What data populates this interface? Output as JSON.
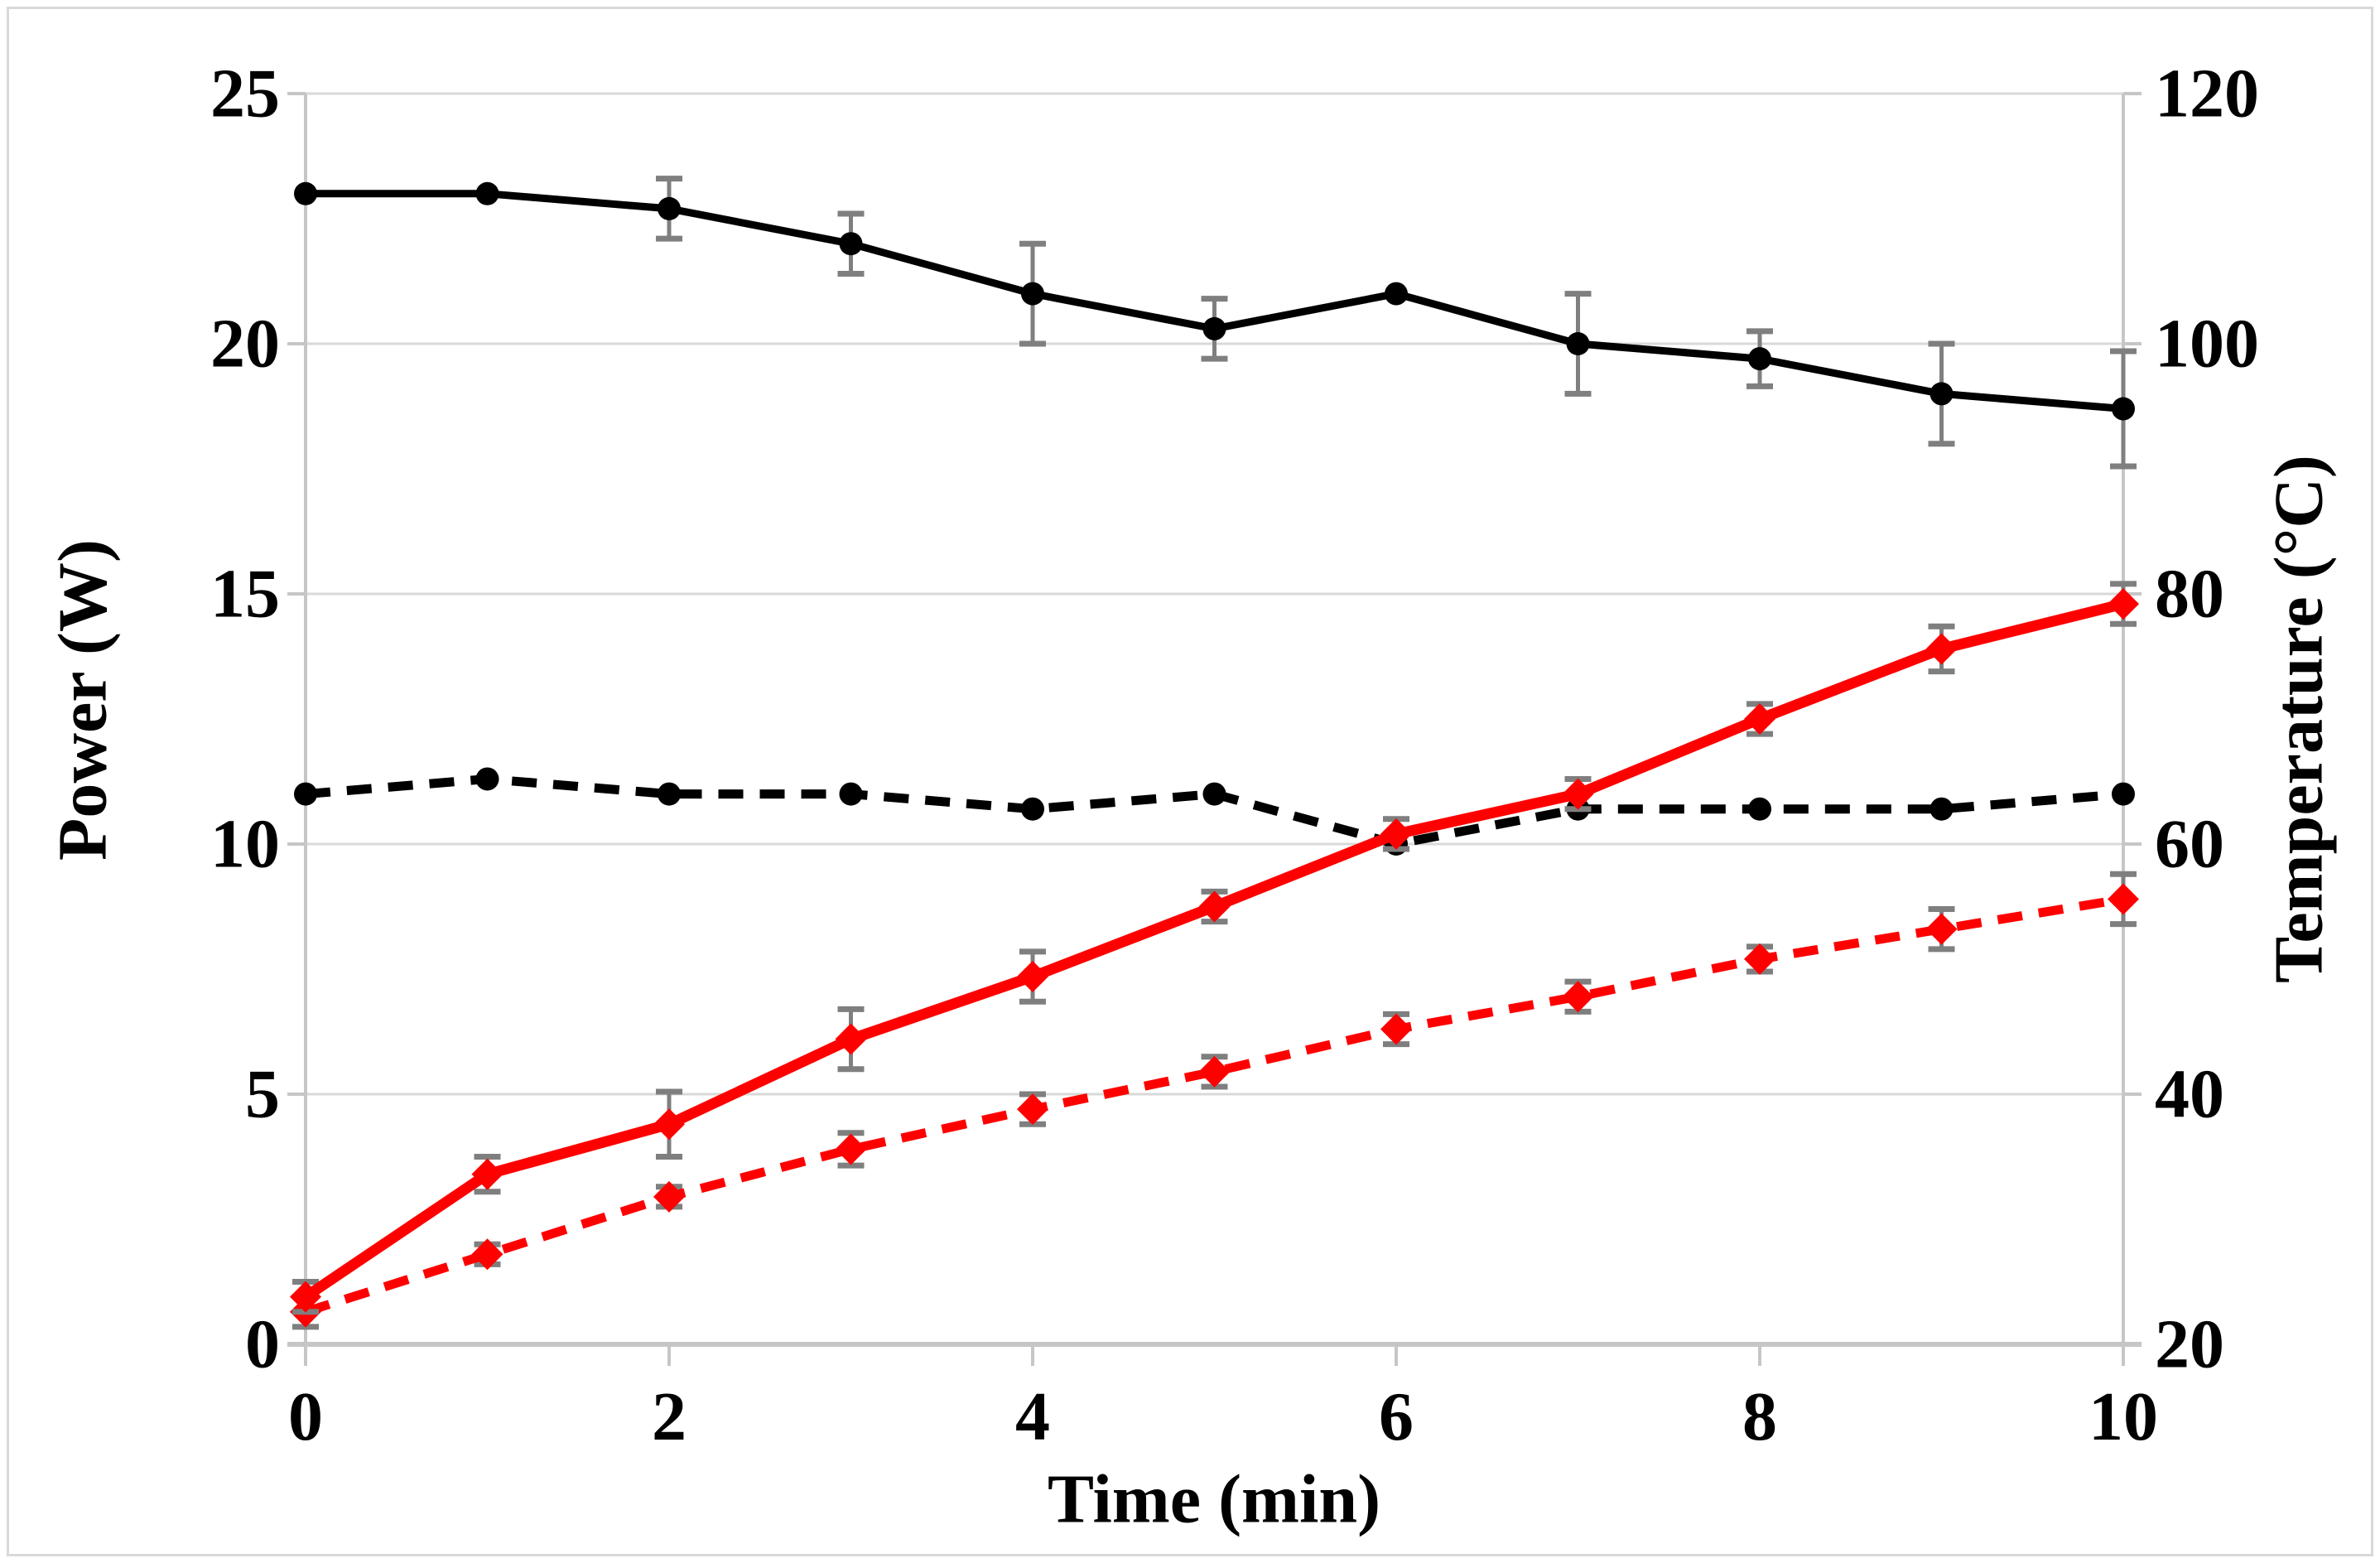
{
  "figure": {
    "background": "#ffffff",
    "border_color": "#d9d9d9",
    "gridline_color": "#d9d9d9",
    "axis_line_color": "#c6c6c6",
    "error_bar_color": "#7f7f7f",
    "text_color": "#000000"
  },
  "chart_data": {
    "type": "line",
    "title": "",
    "xlabel": "Time (min)",
    "x": [
      0,
      1,
      2,
      3,
      4,
      5,
      6,
      7,
      8,
      9,
      10
    ],
    "x_range": [
      0,
      10
    ],
    "x_ticks": [
      0,
      2,
      4,
      6,
      8,
      10
    ],
    "x_tick_labels": [
      "0",
      "2",
      "4",
      "6",
      "8",
      "10"
    ],
    "y_left": {
      "label": "Power (W)",
      "min": 0,
      "max": 25,
      "ticks": [
        0,
        5,
        10,
        15,
        20,
        25
      ],
      "tick_labels": [
        "0",
        "5",
        "10",
        "15",
        "20",
        "25"
      ]
    },
    "y_right": {
      "label": "Temperature (°C)",
      "min": 20,
      "max": 120,
      "ticks": [
        20,
        40,
        60,
        80,
        100,
        120
      ],
      "tick_labels": [
        "20",
        "40",
        "60",
        "80",
        "100",
        "120"
      ]
    },
    "grid": true,
    "legend": "none",
    "series": [
      {
        "name": "power_solid",
        "axis": "left",
        "color": "#000000",
        "style": "solid",
        "marker": "circle",
        "line_width": 9,
        "values": [
          23.0,
          23.0,
          22.7,
          22.0,
          21.0,
          20.3,
          21.0,
          20.0,
          19.7,
          19.0,
          18.7
        ],
        "errors": [
          0,
          0,
          0.6,
          0.6,
          1.0,
          0.6,
          0,
          1.0,
          0.55,
          1.0,
          1.15
        ]
      },
      {
        "name": "power_dashed",
        "axis": "left",
        "color": "#000000",
        "style": "dashed",
        "marker": "circle",
        "line_width": 11,
        "values": [
          11.0,
          11.3,
          11.0,
          11.0,
          10.7,
          11.0,
          10.0,
          10.7,
          10.7,
          10.7,
          11.0
        ],
        "errors": [
          0,
          0,
          0,
          0,
          0,
          0,
          0,
          0,
          0,
          0,
          0
        ]
      },
      {
        "name": "temperature_dashed",
        "axis": "right",
        "color": "#ff0000",
        "style": "dashed",
        "marker": "diamond",
        "line_width": 11,
        "values": [
          22.6,
          27.2,
          31.8,
          35.6,
          38.8,
          41.8,
          45.2,
          47.8,
          50.8,
          53.2,
          55.6
        ],
        "errors": [
          1.2,
          0.8,
          0.8,
          1.3,
          1.2,
          1.2,
          1.2,
          1.2,
          1.0,
          1.6,
          2.0
        ]
      },
      {
        "name": "temperature_solid",
        "axis": "right",
        "color": "#ff0000",
        "style": "solid",
        "marker": "diamond",
        "line_width": 13,
        "values": [
          23.8,
          33.6,
          37.6,
          44.4,
          49.4,
          55.0,
          60.8,
          64.0,
          70.0,
          75.6,
          79.2
        ],
        "errors": [
          1.2,
          1.4,
          2.6,
          2.4,
          2.0,
          1.2,
          1.2,
          1.2,
          1.2,
          1.8,
          1.6
        ]
      }
    ]
  }
}
